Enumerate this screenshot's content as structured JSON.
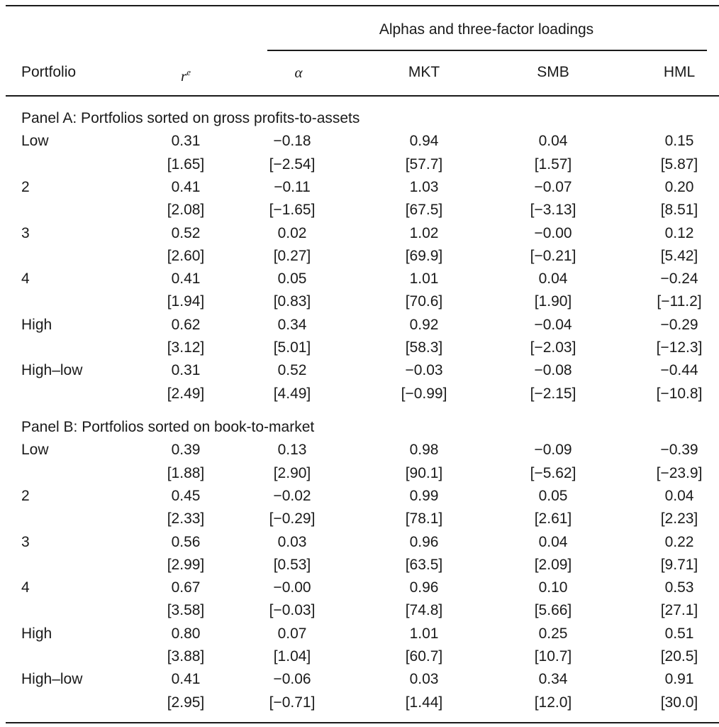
{
  "table": {
    "group_header": "Alphas and three-factor loadings",
    "columns": [
      "Portfolio",
      "r",
      "α",
      "MKT",
      "SMB",
      "HML"
    ],
    "re_superscript": "e",
    "panels": [
      {
        "title": "Panel A: Portfolios sorted on gross profits-to-assets",
        "rows": [
          {
            "label": "Low",
            "values": [
              "0.31",
              "−0.18",
              "0.94",
              "0.04",
              "0.15"
            ],
            "tstats": [
              "[1.65]",
              "[−2.54]",
              "[57.7]",
              "[1.57]",
              "[5.87]"
            ]
          },
          {
            "label": "2",
            "values": [
              "0.41",
              "−0.11",
              "1.03",
              "−0.07",
              "0.20"
            ],
            "tstats": [
              "[2.08]",
              "[−1.65]",
              "[67.5]",
              "[−3.13]",
              "[8.51]"
            ]
          },
          {
            "label": "3",
            "values": [
              "0.52",
              "0.02",
              "1.02",
              "−0.00",
              "0.12"
            ],
            "tstats": [
              "[2.60]",
              "[0.27]",
              "[69.9]",
              "[−0.21]",
              "[5.42]"
            ]
          },
          {
            "label": "4",
            "values": [
              "0.41",
              "0.05",
              "1.01",
              "0.04",
              "−0.24"
            ],
            "tstats": [
              "[1.94]",
              "[0.83]",
              "[70.6]",
              "[1.90]",
              "[−11.2]"
            ]
          },
          {
            "label": "High",
            "values": [
              "0.62",
              "0.34",
              "0.92",
              "−0.04",
              "−0.29"
            ],
            "tstats": [
              "[3.12]",
              "[5.01]",
              "[58.3]",
              "[−2.03]",
              "[−12.3]"
            ]
          },
          {
            "label": "High–low",
            "values": [
              "0.31",
              "0.52",
              "−0.03",
              "−0.08",
              "−0.44"
            ],
            "tstats": [
              "[2.49]",
              "[4.49]",
              "[−0.99]",
              "[−2.15]",
              "[−10.8]"
            ]
          }
        ]
      },
      {
        "title": "Panel B: Portfolios sorted on book-to-market",
        "rows": [
          {
            "label": "Low",
            "values": [
              "0.39",
              "0.13",
              "0.98",
              "−0.09",
              "−0.39"
            ],
            "tstats": [
              "[1.88]",
              "[2.90]",
              "[90.1]",
              "[−5.62]",
              "[−23.9]"
            ]
          },
          {
            "label": "2",
            "values": [
              "0.45",
              "−0.02",
              "0.99",
              "0.05",
              "0.04"
            ],
            "tstats": [
              "[2.33]",
              "[−0.29]",
              "[78.1]",
              "[2.61]",
              "[2.23]"
            ]
          },
          {
            "label": "3",
            "values": [
              "0.56",
              "0.03",
              "0.96",
              "0.04",
              "0.22"
            ],
            "tstats": [
              "[2.99]",
              "[0.53]",
              "[63.5]",
              "[2.09]",
              "[9.71]"
            ]
          },
          {
            "label": "4",
            "values": [
              "0.67",
              "−0.00",
              "0.96",
              "0.10",
              "0.53"
            ],
            "tstats": [
              "[3.58]",
              "[−0.03]",
              "[74.8]",
              "[5.66]",
              "[27.1]"
            ]
          },
          {
            "label": "High",
            "values": [
              "0.80",
              "0.07",
              "1.01",
              "0.25",
              "0.51"
            ],
            "tstats": [
              "[3.88]",
              "[1.04]",
              "[60.7]",
              "[10.7]",
              "[20.5]"
            ]
          },
          {
            "label": "High–low",
            "values": [
              "0.41",
              "−0.06",
              "0.03",
              "0.34",
              "0.91"
            ],
            "tstats": [
              "[2.95]",
              "[−0.71]",
              "[1.44]",
              "[12.0]",
              "[30.0]"
            ]
          }
        ]
      }
    ]
  }
}
